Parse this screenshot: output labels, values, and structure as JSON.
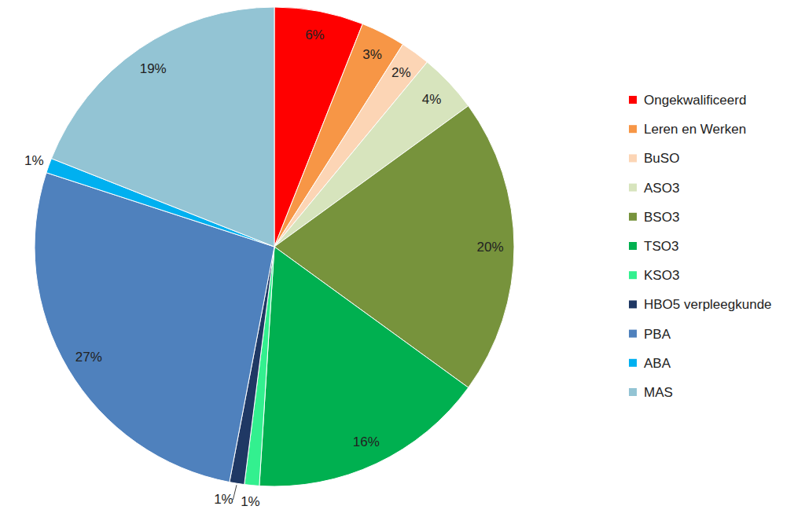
{
  "chart_data": {
    "type": "pie",
    "categories": [
      "Ongekwalificeerd",
      "Leren en Werken",
      "BuSO",
      "ASO3",
      "BSO3",
      "TSO3",
      "KSO3",
      "HBO5 verpleegkunde",
      "PBA",
      "ABA",
      "MAS"
    ],
    "values": [
      6,
      3,
      2,
      4,
      20,
      16,
      1,
      1,
      27,
      1,
      19
    ],
    "value_labels": [
      "6%",
      "3%",
      "2%",
      "4%",
      "20%",
      "16%",
      "1%",
      "1%",
      "27%",
      "1%",
      "19%"
    ],
    "colors": [
      "#ff0000",
      "#f79646",
      "#fcd5b5",
      "#d7e4bd",
      "#77933c",
      "#00b050",
      "#33f08f",
      "#1f3864",
      "#4f81bd",
      "#00b0f0",
      "#93c4d4"
    ],
    "data_labels": true,
    "legend": "right"
  }
}
